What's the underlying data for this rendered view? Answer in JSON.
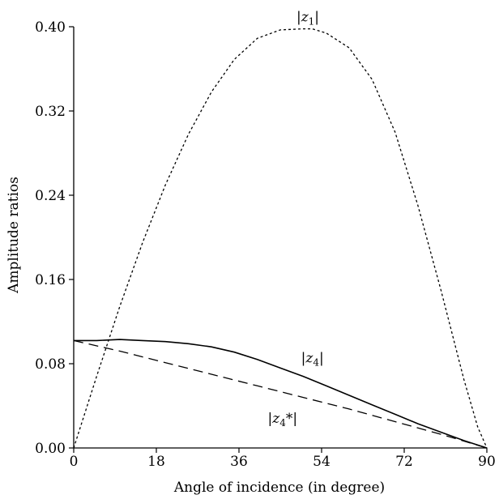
{
  "chart_data": {
    "type": "line",
    "title": "",
    "xlabel": "Angle of incidence (in degree)",
    "ylabel": "Amplitude ratios",
    "xlim": [
      0,
      90
    ],
    "ylim": [
      0,
      0.4
    ],
    "x_ticks": [
      0,
      18,
      36,
      54,
      72,
      90
    ],
    "y_ticks": [
      0.0,
      0.08,
      0.16,
      0.24,
      0.32,
      0.4
    ],
    "x_tick_labels": [
      "0",
      "18",
      "36",
      "54",
      "72",
      "90"
    ],
    "y_tick_labels": [
      "0.00",
      "0.08",
      "0.16",
      "0.24",
      "0.32",
      "0.40"
    ],
    "grid": false,
    "legend": "none",
    "series": [
      {
        "name": "|z1|",
        "label_text": "|z1|",
        "label_sub": "1",
        "style": "dotted",
        "x": [
          0,
          5,
          10,
          15,
          20,
          25,
          30,
          35,
          40,
          45,
          50,
          52,
          55,
          60,
          65,
          70,
          75,
          80,
          85,
          88,
          90
        ],
        "y": [
          0.0,
          0.068,
          0.134,
          0.195,
          0.25,
          0.298,
          0.338,
          0.369,
          0.389,
          0.397,
          0.398,
          0.398,
          0.394,
          0.38,
          0.35,
          0.3,
          0.23,
          0.15,
          0.065,
          0.02,
          0.0
        ]
      },
      {
        "name": "|z4|",
        "label_text": "|z4|",
        "label_sub": "4",
        "style": "solid",
        "x": [
          0,
          5,
          10,
          15,
          20,
          25,
          30,
          35,
          40,
          45,
          50,
          55,
          60,
          65,
          70,
          75,
          80,
          85,
          90
        ],
        "y": [
          0.102,
          0.102,
          0.103,
          0.102,
          0.101,
          0.099,
          0.096,
          0.091,
          0.084,
          0.076,
          0.068,
          0.059,
          0.05,
          0.041,
          0.032,
          0.023,
          0.015,
          0.007,
          0.0
        ]
      },
      {
        "name": "|z4*|",
        "label_text": "|z4*|",
        "label_sub": "4",
        "style": "dashed",
        "x": [
          0,
          10,
          20,
          30,
          40,
          50,
          60,
          70,
          80,
          90
        ],
        "y": [
          0.102,
          0.092,
          0.081,
          0.07,
          0.059,
          0.048,
          0.037,
          0.025,
          0.013,
          0.0
        ]
      }
    ]
  }
}
